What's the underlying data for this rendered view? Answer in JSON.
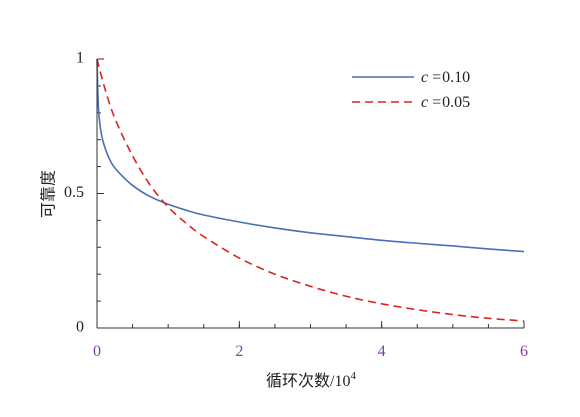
{
  "chart_data": {
    "type": "line",
    "ylabel": "可靠度",
    "xlabel_main": "循环次数/10",
    "xlabel_exp": "4",
    "xlim": [
      0,
      6
    ],
    "ylim": [
      0,
      1
    ],
    "x_ticks": [
      {
        "value": 0,
        "label": "0"
      },
      {
        "value": 2,
        "label": "2"
      },
      {
        "value": 4,
        "label": "4"
      },
      {
        "value": 6,
        "label": "6"
      }
    ],
    "y_ticks": [
      {
        "value": 0,
        "label": "0"
      },
      {
        "value": 0.5,
        "label": "0.5"
      },
      {
        "value": 1,
        "label": "1"
      }
    ],
    "x_minor_step": 0.5,
    "y_minor_step": 0.1,
    "grid": false,
    "legend_position": "top-right",
    "legend_var": "c",
    "series": [
      {
        "name": "0.10",
        "color": "#4a6fb5",
        "dash": "solid",
        "x": [
          0,
          0.02,
          0.05,
          0.1,
          0.2,
          0.3,
          0.5,
          0.75,
          1,
          1.25,
          1.5,
          2,
          2.5,
          3,
          3.5,
          4,
          4.5,
          5,
          5.5,
          6
        ],
        "y": [
          1.0,
          0.82,
          0.74,
          0.68,
          0.615,
          0.58,
          0.53,
          0.488,
          0.46,
          0.438,
          0.42,
          0.394,
          0.372,
          0.354,
          0.34,
          0.326,
          0.315,
          0.305,
          0.294,
          0.284
        ]
      },
      {
        "name": "0.05",
        "color": "#d7261e",
        "dash": "dashed",
        "x": [
          0,
          0.1,
          0.25,
          0.5,
          0.75,
          1,
          1.25,
          1.5,
          2,
          2.5,
          3,
          3.5,
          4,
          4.5,
          5,
          5.5,
          6
        ],
        "y": [
          1.0,
          0.9,
          0.78,
          0.64,
          0.53,
          0.45,
          0.39,
          0.34,
          0.26,
          0.2,
          0.155,
          0.118,
          0.09,
          0.068,
          0.05,
          0.036,
          0.026
        ]
      }
    ]
  }
}
